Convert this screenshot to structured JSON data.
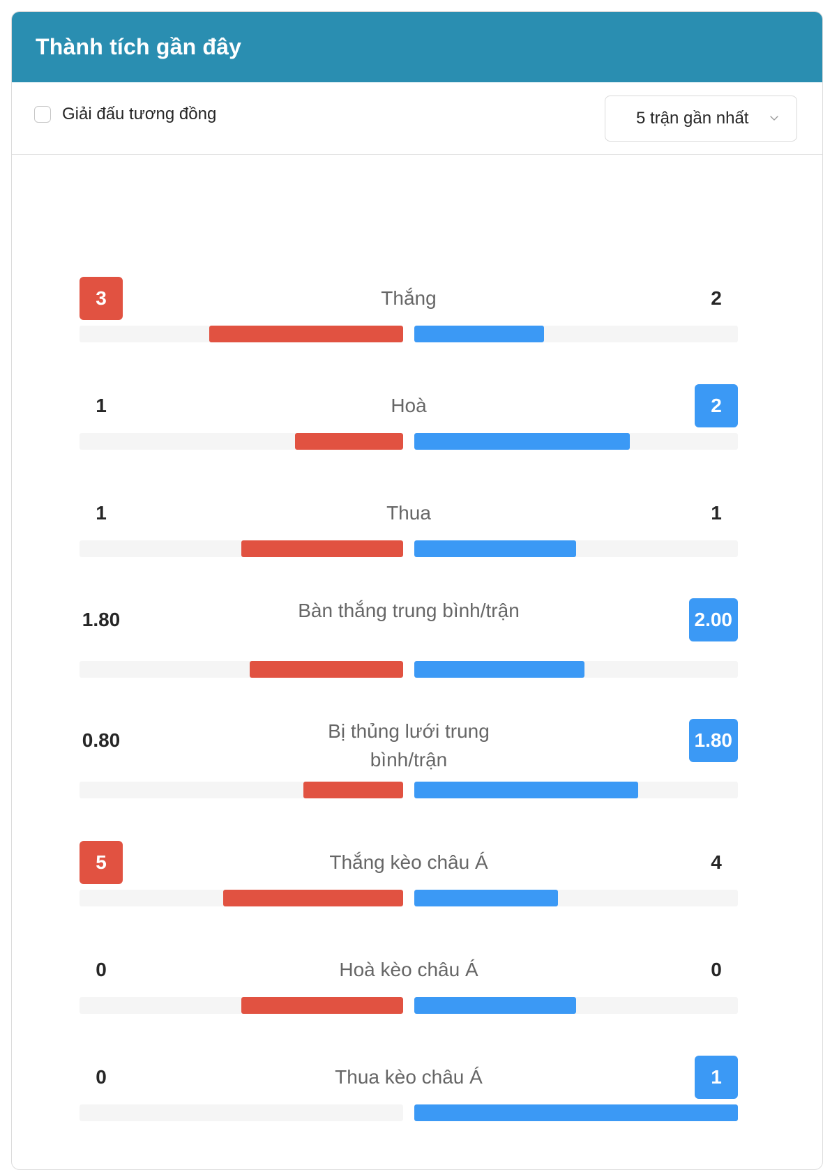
{
  "header": {
    "title": "Thành tích gần đây"
  },
  "filters": {
    "checkbox_label": "Giải đấu tương đồng",
    "checkbox_checked": false,
    "select_value": "5 trận gần nhất"
  },
  "colors": {
    "header_bg": "#2a8eb1",
    "home": "#e15241",
    "away": "#3b99f5",
    "track": "#f5f5f5"
  },
  "stats": [
    {
      "label": "Thắng",
      "home": "3",
      "away": "2",
      "highlight": "home",
      "home_fill": 0.6,
      "away_fill": 0.4
    },
    {
      "label": "Hoà",
      "home": "1",
      "away": "2",
      "highlight": "away",
      "home_fill": 0.333,
      "away_fill": 0.667
    },
    {
      "label": "Thua",
      "home": "1",
      "away": "1",
      "highlight": "none",
      "home_fill": 0.5,
      "away_fill": 0.5
    },
    {
      "label": "Bàn thắng trung bình/trận",
      "home": "1.80",
      "away": "2.00",
      "highlight": "away",
      "home_fill": 0.474,
      "away_fill": 0.526
    },
    {
      "label": "Bị thủng lưới trung bình/trận",
      "home": "0.80",
      "away": "1.80",
      "highlight": "away",
      "home_fill": 0.308,
      "away_fill": 0.692
    },
    {
      "label": "Thắng kèo châu Á",
      "home": "5",
      "away": "4",
      "highlight": "home",
      "home_fill": 0.556,
      "away_fill": 0.444
    },
    {
      "label": "Hoà kèo châu Á",
      "home": "0",
      "away": "0",
      "highlight": "none",
      "home_fill": 0.5,
      "away_fill": 0.5
    },
    {
      "label": "Thua kèo châu Á",
      "home": "0",
      "away": "1",
      "highlight": "away",
      "home_fill": 0,
      "away_fill": 1
    }
  ]
}
